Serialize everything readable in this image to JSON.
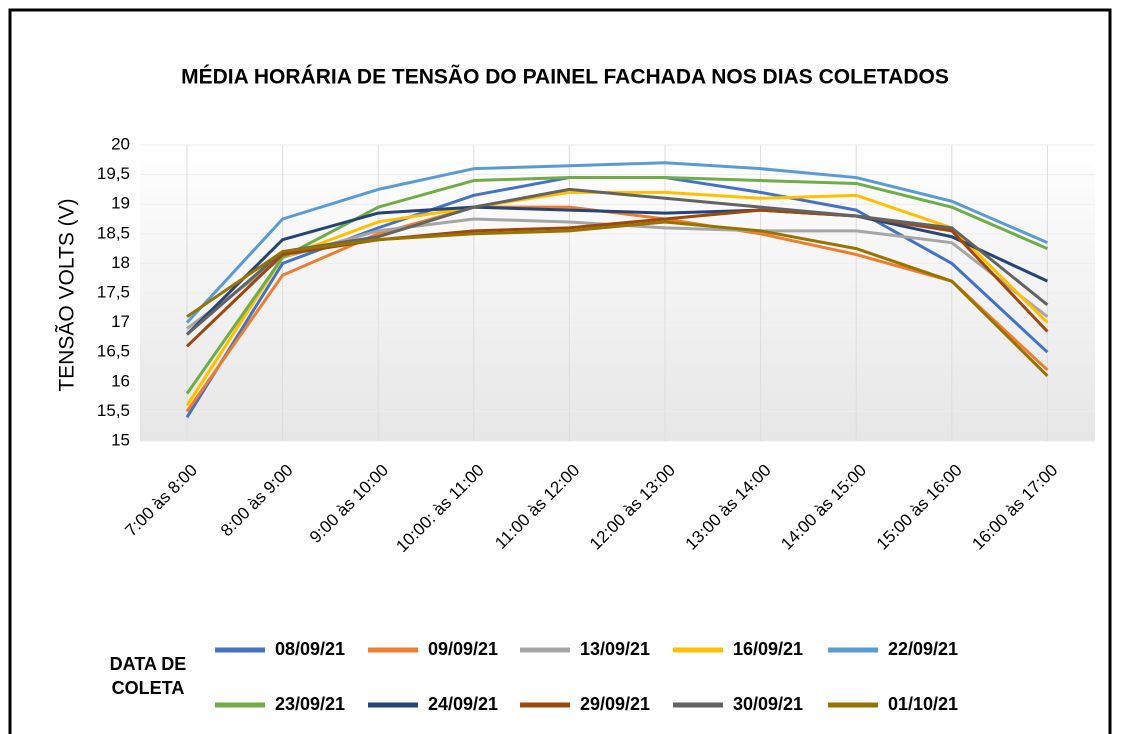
{
  "chart_data": {
    "type": "line",
    "title": "MÉDIA HORÁRIA DE TENSÃO DO PAINEL FACHADA NOS DIAS COLETADOS",
    "y_label": "TENSÃO VOLTS  (V)",
    "legend_title": "DATA DE COLETA",
    "categories": [
      "7:00 às 8:00",
      "8:00 às 9:00",
      "9:00 às 10:00",
      "10:00: às 11:00",
      "11:00 às 12:00",
      "12:00 às 13:00",
      "13:00 às 14:00",
      "14:00 às 15:00",
      "15:00 às 16:00",
      "16:00 às 17:00"
    ],
    "ylim": [
      15,
      20
    ],
    "yticks": [
      15,
      {
        "value": 15.5,
        "label": "15,5"
      },
      16,
      {
        "value": 16.5,
        "label": "16,5"
      },
      17,
      {
        "value": 17.5,
        "label": "17,5"
      },
      18,
      {
        "value": 18.5,
        "label": "18,5"
      },
      19,
      {
        "value": 19.5,
        "label": "19,5"
      },
      20
    ],
    "grid": true,
    "series": [
      {
        "name": "08/09/21",
        "color": "#4472c4",
        "values": [
          15.4,
          18.0,
          18.6,
          19.15,
          19.45,
          19.45,
          19.2,
          18.9,
          18.0,
          16.5
        ]
      },
      {
        "name": "09/09/21",
        "color": "#ed7d31",
        "values": [
          15.5,
          17.8,
          18.5,
          18.95,
          18.95,
          18.75,
          18.5,
          18.15,
          17.7,
          16.2
        ]
      },
      {
        "name": "13/09/21",
        "color": "#a5a5a5",
        "values": [
          16.9,
          18.1,
          18.55,
          18.75,
          18.7,
          18.6,
          18.55,
          18.55,
          18.35,
          17.1
        ]
      },
      {
        "name": "16/09/21",
        "color": "#ffc000",
        "values": [
          15.6,
          18.1,
          18.7,
          18.95,
          19.2,
          19.2,
          19.1,
          19.15,
          18.6,
          17.0
        ]
      },
      {
        "name": "22/09/21",
        "color": "#5b9bd5",
        "values": [
          17.0,
          18.75,
          19.25,
          19.6,
          19.65,
          19.7,
          19.6,
          19.45,
          19.05,
          18.35
        ]
      },
      {
        "name": "23/09/21",
        "color": "#70ad47",
        "values": [
          15.8,
          18.1,
          18.95,
          19.4,
          19.45,
          19.45,
          19.4,
          19.35,
          18.95,
          18.25
        ]
      },
      {
        "name": "24/09/21",
        "color": "#264478",
        "values": [
          16.8,
          18.4,
          18.85,
          18.95,
          18.9,
          18.85,
          18.9,
          18.8,
          18.45,
          17.7
        ]
      },
      {
        "name": "29/09/21",
        "color": "#9e480e",
        "values": [
          16.6,
          18.15,
          18.4,
          18.55,
          18.6,
          18.75,
          18.9,
          18.8,
          18.55,
          16.85
        ]
      },
      {
        "name": "30/09/21",
        "color": "#636363",
        "values": [
          16.8,
          18.2,
          18.45,
          18.95,
          19.25,
          19.1,
          18.95,
          18.8,
          18.6,
          17.3
        ]
      },
      {
        "name": "01/10/21",
        "color": "#997300",
        "values": [
          17.1,
          18.2,
          18.4,
          18.5,
          18.55,
          18.7,
          18.55,
          18.25,
          17.7,
          16.1
        ]
      }
    ]
  }
}
